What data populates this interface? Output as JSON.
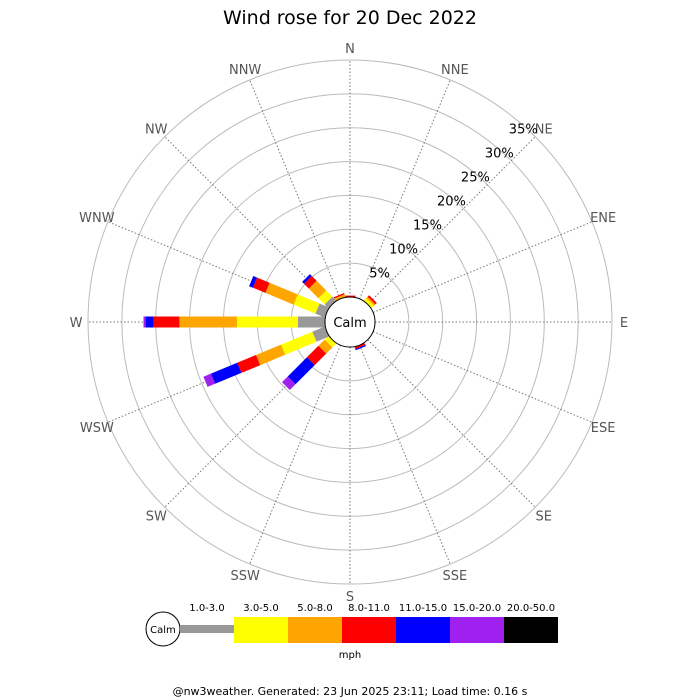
{
  "chart_data": {
    "type": "windrose",
    "title": "Wind rose for 20 Dec 2022",
    "directions": [
      "N",
      "NNE",
      "NE",
      "ENE",
      "E",
      "ESE",
      "SE",
      "SSE",
      "S",
      "SSW",
      "SW",
      "WSW",
      "W",
      "WNW",
      "NW",
      "NNW"
    ],
    "radial_max": 35,
    "radial_ticks": [
      5,
      10,
      15,
      20,
      25,
      30,
      35
    ],
    "radial_tick_labels": [
      "5%",
      "10%",
      "15%",
      "20%",
      "25%",
      "30%",
      "35%"
    ],
    "calm_label": "Calm",
    "unit": "mph",
    "speed_bins": [
      {
        "label": "1.0-3.0",
        "color": "#999999"
      },
      {
        "label": "3.0-5.0",
        "color": "#ffff00"
      },
      {
        "label": "5.0-8.0",
        "color": "#ffa500"
      },
      {
        "label": "8.0-11.0",
        "color": "#ff0000"
      },
      {
        "label": "11.0-15.0",
        "color": "#0000ff"
      },
      {
        "label": "15.0-20.0",
        "color": "#a020f0"
      },
      {
        "label": "20.0-50.0",
        "color": "#000000"
      }
    ],
    "series": [
      {
        "direction": "N",
        "values": [
          0,
          0,
          0,
          0.2,
          0,
          0,
          0
        ]
      },
      {
        "direction": "NNE",
        "values": [
          0,
          0,
          0,
          0,
          0,
          0,
          0
        ]
      },
      {
        "direction": "NE",
        "values": [
          0,
          0.5,
          0.3,
          0.3,
          0,
          0,
          0
        ]
      },
      {
        "direction": "ENE",
        "values": [
          0,
          0,
          0,
          0,
          0,
          0,
          0
        ]
      },
      {
        "direction": "E",
        "values": [
          0,
          0,
          0,
          0,
          0,
          0,
          0
        ]
      },
      {
        "direction": "ESE",
        "values": [
          0,
          0,
          0,
          0,
          0,
          0,
          0
        ]
      },
      {
        "direction": "SE",
        "values": [
          0,
          0,
          0,
          0,
          0,
          0,
          0
        ]
      },
      {
        "direction": "SSE",
        "values": [
          0,
          0,
          0,
          0.3,
          0.2,
          0,
          0
        ]
      },
      {
        "direction": "S",
        "values": [
          0,
          0,
          0,
          0,
          0,
          0,
          0
        ]
      },
      {
        "direction": "SSW",
        "values": [
          0,
          0,
          0,
          0,
          0,
          0,
          0
        ]
      },
      {
        "direction": "SW",
        "values": [
          0,
          0.8,
          1.3,
          2.4,
          4.0,
          1.2,
          0
        ]
      },
      {
        "direction": "WSW",
        "values": [
          2.0,
          5.0,
          4.0,
          3.0,
          4.2,
          1.2,
          0
        ]
      },
      {
        "direction": "W",
        "values": [
          4.0,
          9.0,
          8.5,
          3.8,
          1.2,
          0.3,
          0
        ]
      },
      {
        "direction": "WNW",
        "values": [
          1.5,
          3.5,
          4.5,
          2.0,
          0.6,
          0,
          0
        ]
      },
      {
        "direction": "NW",
        "values": [
          0.8,
          1.3,
          2.0,
          1.0,
          0.4,
          0,
          0
        ]
      },
      {
        "direction": "NNW",
        "values": [
          0,
          0,
          0.4,
          0.2,
          0,
          0,
          0
        ]
      }
    ]
  },
  "footer": "@nw3weather. Generated: 23 Jun 2025 23:11; Load time: 0.16 s"
}
